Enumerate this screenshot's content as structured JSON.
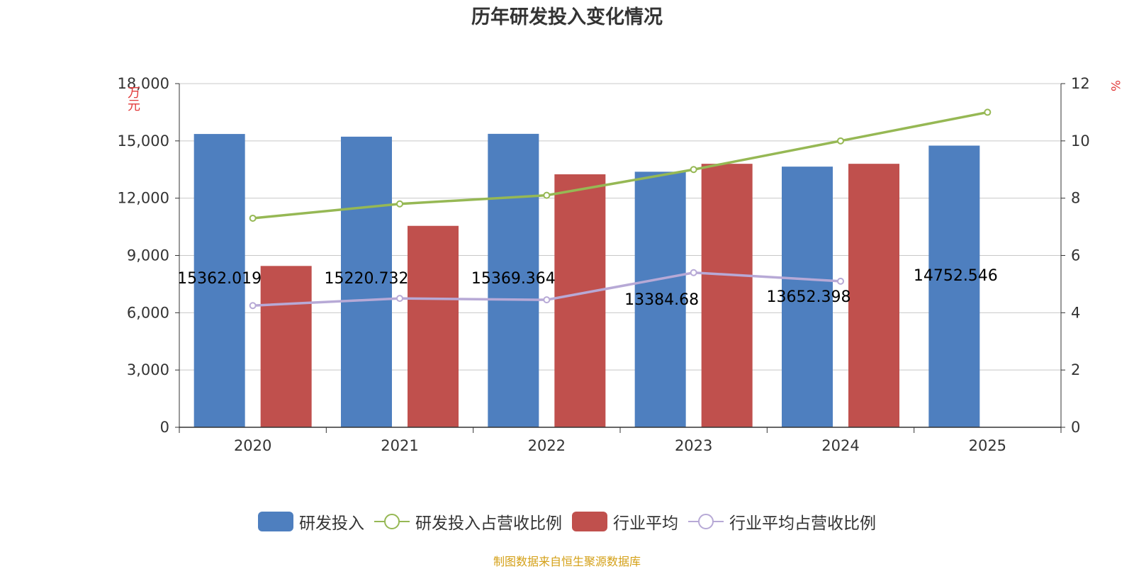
{
  "title": "历年研发投入变化情况",
  "source": "制图数据来自恒生聚源数据库",
  "chart_data": {
    "type": "bar",
    "categories": [
      "2020",
      "2021",
      "2022",
      "2023",
      "2024",
      "2025"
    ],
    "y_left": {
      "label": "万元",
      "ylim": [
        0,
        18000
      ],
      "ticks": [
        "0",
        "3,000",
        "6,000",
        "9,000",
        "12,000",
        "15,000",
        "18,000"
      ]
    },
    "y_right": {
      "label": "%",
      "ylim": [
        0,
        12
      ],
      "ticks": [
        "0",
        "2",
        "4",
        "6",
        "8",
        "10",
        "12"
      ]
    },
    "series": [
      {
        "name": "研发投入",
        "kind": "bar",
        "axis": "left",
        "color": "#4e7fbf",
        "values": [
          15362.019,
          15220.732,
          15369.364,
          13384.68,
          13652.398,
          14752.546
        ],
        "data_labels": [
          "15362.019",
          "15220.732",
          "15369.364",
          "13384.68",
          "13652.398",
          "14752.546"
        ]
      },
      {
        "name": "研发投入占营收比例",
        "kind": "line",
        "axis": "right",
        "color": "#96b854",
        "values": [
          7.3,
          7.8,
          8.1,
          9.0,
          10.0,
          11.0
        ]
      },
      {
        "name": "行业平均",
        "kind": "bar",
        "axis": "left",
        "color": "#c0504d",
        "values": [
          8450,
          10550,
          13250,
          13800,
          13800,
          null
        ]
      },
      {
        "name": "行业平均占营收比例",
        "kind": "line",
        "axis": "right",
        "color": "#b7a9d6",
        "values": [
          4.25,
          4.5,
          4.45,
          5.4,
          5.1,
          null
        ]
      }
    ],
    "grid": true,
    "legend_position": "bottom"
  }
}
